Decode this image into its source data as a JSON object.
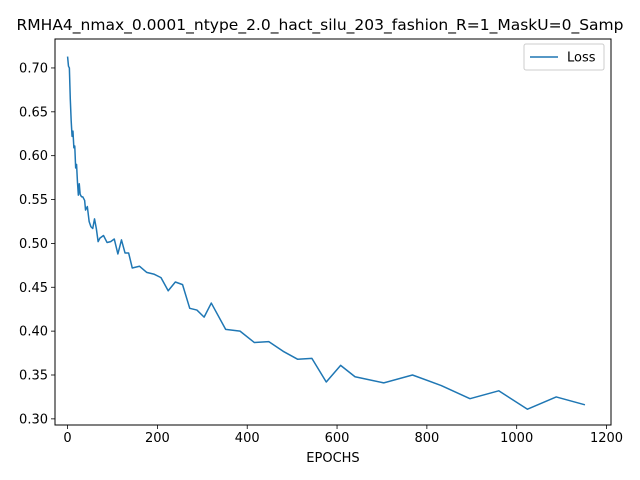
{
  "chart_data": {
    "type": "line",
    "title": "RMHA4_nmax_0.0001_ntype_2.0_hact_silu_203_fashion_R=1_MaskU=0_Samp",
    "xlabel": "EPOCHS",
    "ylabel": "",
    "xlim": [
      -28,
      1210
    ],
    "ylim": [
      0.293,
      0.733
    ],
    "xticks": [
      0,
      200,
      400,
      600,
      800,
      1000,
      1200
    ],
    "yticks": [
      0.3,
      0.35,
      0.4,
      0.45,
      0.5,
      0.55,
      0.6,
      0.65,
      0.7
    ],
    "legend_position": "top-right",
    "grid": false,
    "series": [
      {
        "name": "Loss",
        "color": "#1f77b4",
        "x": [
          0,
          2,
          4,
          6,
          8,
          10,
          12,
          14,
          16,
          18,
          20,
          22,
          24,
          26,
          28,
          30,
          32,
          34,
          36,
          38,
          40,
          44,
          48,
          52,
          56,
          60,
          64,
          68,
          72,
          80,
          88,
          96,
          104,
          112,
          120,
          128,
          136,
          144,
          160,
          176,
          192,
          208,
          224,
          240,
          256,
          272,
          288,
          304,
          320,
          352,
          384,
          416,
          448,
          480,
          512,
          544,
          576,
          608,
          640,
          704,
          768,
          832,
          896,
          960,
          1024,
          1088,
          1152
        ],
        "y": [
          0.713,
          0.702,
          0.7,
          0.665,
          0.64,
          0.622,
          0.628,
          0.609,
          0.611,
          0.586,
          0.59,
          0.57,
          0.555,
          0.568,
          0.556,
          0.554,
          0.553,
          0.553,
          0.551,
          0.549,
          0.538,
          0.542,
          0.525,
          0.519,
          0.517,
          0.528,
          0.517,
          0.502,
          0.506,
          0.509,
          0.501,
          0.502,
          0.505,
          0.488,
          0.504,
          0.489,
          0.489,
          0.472,
          0.474,
          0.467,
          0.465,
          0.461,
          0.446,
          0.456,
          0.453,
          0.426,
          0.424,
          0.416,
          0.432,
          0.402,
          0.4,
          0.387,
          0.388,
          0.377,
          0.368,
          0.369,
          0.342,
          0.361,
          0.348,
          0.341,
          0.35,
          0.338,
          0.323,
          0.332,
          0.311,
          0.325,
          0.316
        ]
      }
    ]
  }
}
